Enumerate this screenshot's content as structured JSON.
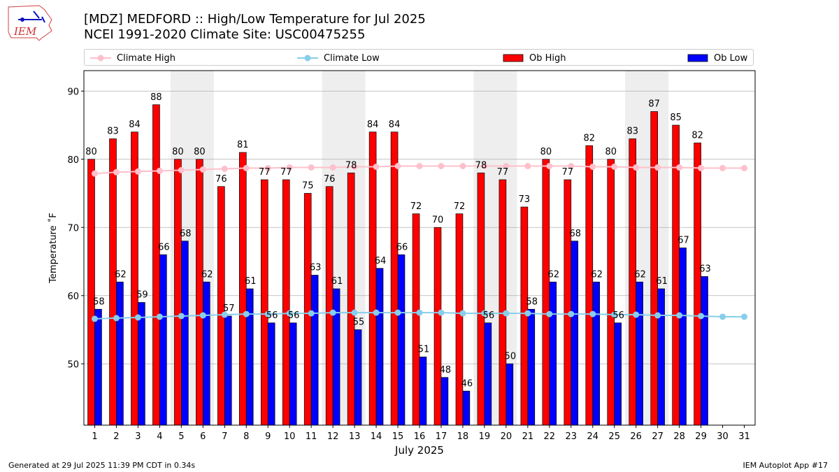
{
  "header": {
    "logo_text": "IEM",
    "title_line1": "[MDZ] MEDFORD :: High/Low Temperature for Jul 2025",
    "title_line2": "NCEI 1991-2020 Climate Site: USC00475255"
  },
  "footer": {
    "left": "Generated at 29 Jul 2025 11:39 PM CDT in 0.34s",
    "right": "IEM Autoplot App #17"
  },
  "colors": {
    "ob_high": "#ff0000",
    "ob_low": "#0000ff",
    "climate_high": "#ffc0cb",
    "climate_low": "#87ceeb",
    "weekend_shade": "#eeeeee",
    "grid": "#b0b0b0"
  },
  "chart_data": {
    "type": "bar",
    "xlabel": "July 2025",
    "ylabel": "Temperature ˚F",
    "ylim": [
      41,
      93
    ],
    "yticks": [
      50,
      60,
      70,
      80,
      90
    ],
    "grid": "horizontal",
    "legend_position": "top",
    "categories": [
      "1",
      "2",
      "3",
      "4",
      "5",
      "6",
      "7",
      "8",
      "9",
      "10",
      "11",
      "12",
      "13",
      "14",
      "15",
      "16",
      "17",
      "18",
      "19",
      "20",
      "21",
      "22",
      "23",
      "24",
      "25",
      "26",
      "27",
      "28",
      "29",
      "30",
      "31"
    ],
    "shaded_days": [
      [
        5,
        6
      ],
      [
        12,
        13
      ],
      [
        19,
        20
      ],
      [
        26,
        27
      ]
    ],
    "series": [
      {
        "name": "Ob High",
        "kind": "bar",
        "values": [
          80,
          83,
          84,
          88,
          80,
          80,
          76,
          81,
          77,
          77,
          75,
          76,
          78,
          84,
          84,
          72,
          70,
          72,
          78,
          77,
          73,
          80,
          77,
          82,
          80,
          83,
          87,
          85,
          82.4,
          null,
          null
        ],
        "labels": [
          "80",
          "83",
          "84",
          "88",
          "80",
          "80",
          "76",
          "81",
          "77",
          "77",
          "75",
          "76",
          "78",
          "84",
          "84",
          "72",
          "70",
          "72",
          "78",
          "77",
          "73",
          "80",
          "77",
          "82",
          "80",
          "83",
          "87",
          "85",
          "82",
          null,
          null
        ]
      },
      {
        "name": "Ob Low",
        "kind": "bar",
        "values": [
          58,
          62,
          59,
          66,
          68,
          62,
          57,
          61,
          56,
          56,
          63,
          61,
          55,
          64,
          66,
          51,
          48,
          46,
          56,
          50,
          58,
          62,
          68,
          62,
          56,
          62,
          61,
          67,
          62.8,
          null,
          null
        ],
        "labels": [
          "58",
          "62",
          "59",
          "66",
          "68",
          "62",
          "57",
          "61",
          "56",
          "56",
          "63",
          "61",
          "55",
          "64",
          "66",
          "51",
          "48",
          "46",
          "56",
          "50",
          "58",
          "62",
          "68",
          "62",
          "56",
          "62",
          "61",
          "67",
          "63",
          null,
          null
        ]
      },
      {
        "name": "Climate High",
        "kind": "line",
        "values": [
          77.9,
          78.1,
          78.2,
          78.3,
          78.4,
          78.5,
          78.6,
          78.7,
          78.7,
          78.8,
          78.8,
          78.8,
          78.9,
          78.9,
          79.0,
          79.0,
          79.0,
          79.0,
          79.0,
          79.0,
          79.0,
          79.0,
          79.0,
          78.9,
          78.9,
          78.8,
          78.8,
          78.8,
          78.7,
          78.7,
          78.7
        ]
      },
      {
        "name": "Climate Low",
        "kind": "line",
        "values": [
          56.6,
          56.7,
          56.8,
          56.9,
          57.0,
          57.1,
          57.2,
          57.3,
          57.3,
          57.4,
          57.4,
          57.5,
          57.5,
          57.5,
          57.5,
          57.5,
          57.5,
          57.4,
          57.4,
          57.4,
          57.4,
          57.3,
          57.3,
          57.3,
          57.2,
          57.2,
          57.1,
          57.1,
          57.0,
          56.9,
          56.9
        ]
      }
    ]
  }
}
